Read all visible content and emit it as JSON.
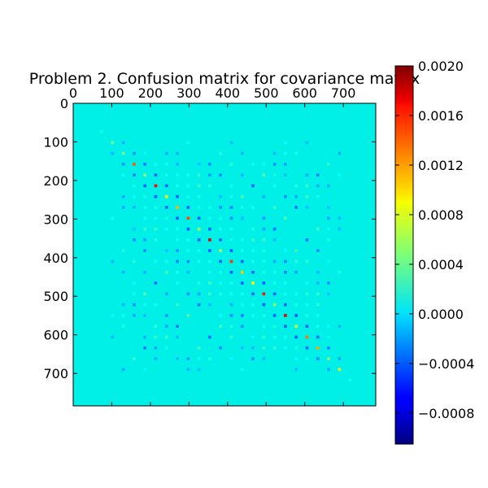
{
  "chart_data": {
    "type": "heatmap",
    "title": "Problem 2. Confusion matrix for covariance matrix",
    "matrix_size": 784,
    "xlim": [
      0,
      784
    ],
    "ylim": [
      784,
      0
    ],
    "x_ticks": [
      0,
      100,
      200,
      300,
      400,
      500,
      600,
      700
    ],
    "y_ticks": [
      0,
      100,
      200,
      300,
      400,
      500,
      600,
      700
    ],
    "x_tick_labels": [
      "0",
      "100",
      "200",
      "300",
      "400",
      "500",
      "600",
      "700"
    ],
    "y_tick_labels": [
      "0",
      "100",
      "200",
      "300",
      "400",
      "500",
      "600",
      "700"
    ],
    "x_axis_position": "top",
    "colormap": "jet",
    "colorbar": {
      "position": "right",
      "vmin": -0.00105,
      "vmax": 0.002,
      "ticks": [
        -0.0008,
        -0.0004,
        0.0,
        0.0004,
        0.0008,
        0.0012,
        0.0016,
        0.002
      ],
      "tick_labels": [
        "−0.0008",
        "−0.0004",
        "0.0000",
        "0.0004",
        "0.0008",
        "0.0012",
        "0.0016",
        "0.0020"
      ]
    },
    "background_value": 0.0,
    "pattern": "block-structured 28x28 pixel covariance; strong positive diagonal, negative off-diagonal bands; nonzero region approx. rows/cols 60-730"
  }
}
